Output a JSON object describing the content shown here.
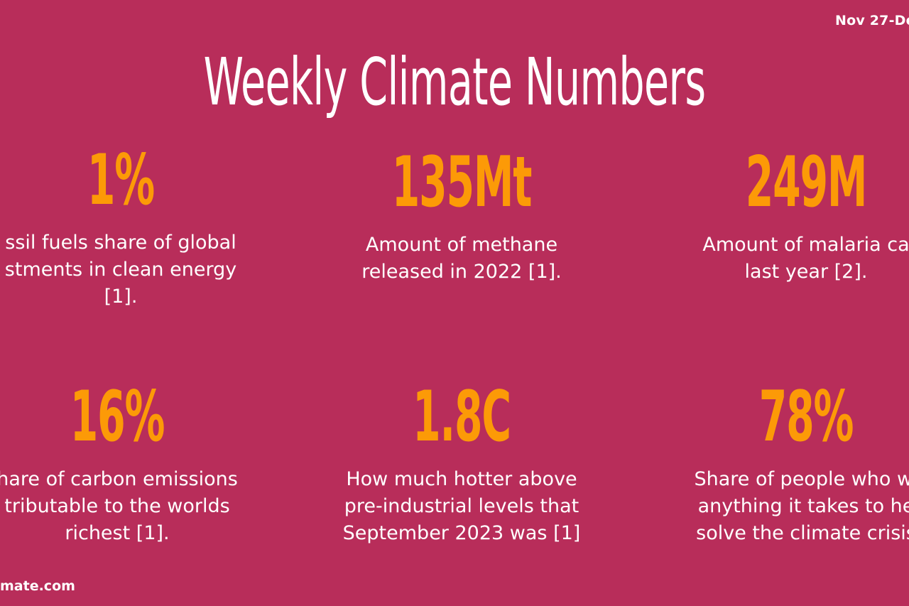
{
  "header": {
    "date_range": "Nov 27-De",
    "title": "Weekly Climate Numbers"
  },
  "stats": [
    {
      "value": "1%",
      "description": "ssil fuels share of global\nstments in clean energy\n[1]."
    },
    {
      "value": "135Mt",
      "description": "Amount of methane\nreleased in 2022 [1]."
    },
    {
      "value": "249M",
      "description": "Amount of malaria ca\nlast year [2]."
    },
    {
      "value": "16%",
      "description": "hare of carbon emissions\ntributable to the worlds\nrichest [1]."
    },
    {
      "value": "1.8C",
      "description": "How much hotter above\npre-industrial levels that\nSeptember 2023 was [1]"
    },
    {
      "value": "78%",
      "description": "Share of people who wi\nanything it takes to he\nsolve the climate crisis"
    }
  ],
  "footer": {
    "site": "mate.com"
  },
  "colors": {
    "background": "#b82d5a",
    "accent": "#fc9a07",
    "text": "#ffffff"
  }
}
